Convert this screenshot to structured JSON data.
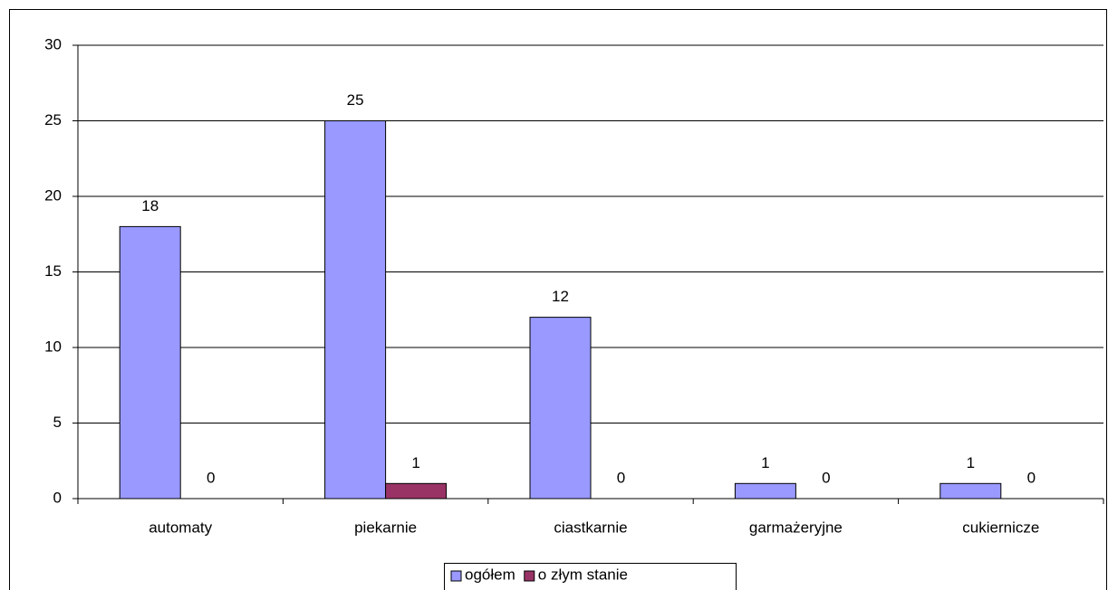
{
  "chart_data": {
    "type": "bar",
    "categories": [
      "automaty",
      "piekarnie",
      "ciastkarnie",
      "garmażeryjne",
      "cukiernicze"
    ],
    "series": [
      {
        "name": "ogółem",
        "color": "#9999ff",
        "values": [
          18,
          25,
          12,
          1,
          1
        ]
      },
      {
        "name": "o złym stanie",
        "color": "#993366",
        "values": [
          0,
          1,
          0,
          0,
          0
        ]
      }
    ],
    "ylim": [
      0,
      30
    ],
    "yticks": [
      0,
      5,
      10,
      15,
      20,
      25,
      30
    ],
    "grid": true,
    "legend": "bottom"
  }
}
